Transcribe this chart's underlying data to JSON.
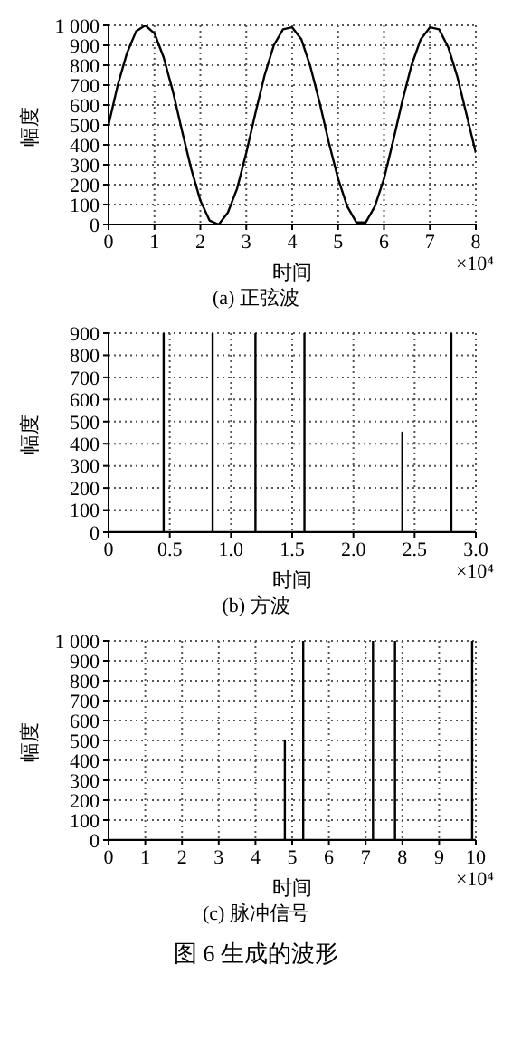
{
  "chart_data": [
    {
      "type": "line",
      "title": "(a) 正弦波",
      "xlabel": "时间",
      "ylabel": "幅度",
      "annotations": [
        "×10⁴"
      ],
      "grid": true,
      "line_style": "solid",
      "marker": "none",
      "xlim": [
        0,
        8
      ],
      "xticks": [
        0,
        1,
        2,
        3,
        4,
        5,
        6,
        7,
        8
      ],
      "ylim": [
        0,
        1000
      ],
      "yticks": [
        0,
        100,
        200,
        300,
        400,
        500,
        600,
        700,
        800,
        900,
        {
          "value": 1000,
          "label": "1 000"
        }
      ],
      "x": [
        0,
        0.2,
        0.4,
        0.6,
        0.8,
        1.0,
        1.2,
        1.4,
        1.6,
        1.8,
        2.0,
        2.2,
        2.4,
        2.6,
        2.8,
        3.0,
        3.2,
        3.4,
        3.6,
        3.8,
        4.0,
        4.2,
        4.4,
        4.6,
        4.8,
        5.0,
        5.2,
        5.4,
        5.6,
        5.8,
        6.0,
        6.2,
        6.4,
        6.6,
        6.8,
        7.0,
        7.2,
        7.4,
        7.6,
        7.8,
        8.0
      ],
      "series": [
        {
          "color": "#000000",
          "values": [
            500,
            700,
            860,
            970,
            1000,
            960,
            840,
            670,
            470,
            280,
            120,
            20,
            0,
            60,
            180,
            360,
            560,
            750,
            900,
            980,
            990,
            930,
            790,
            610,
            410,
            230,
            90,
            10,
            10,
            90,
            230,
            420,
            620,
            800,
            930,
            990,
            980,
            890,
            740,
            550,
            360
          ]
        }
      ]
    },
    {
      "type": "line",
      "title": "(b) 方波",
      "xlabel": "时间",
      "ylabel": "幅度",
      "annotations": [
        "×10⁴"
      ],
      "grid": true,
      "line_style": "solid",
      "marker": "none",
      "xlim": [
        0,
        3.0
      ],
      "xticks": [
        0,
        0.5,
        {
          "value": 1.0,
          "label": "1.0"
        },
        1.5,
        {
          "value": 2.0,
          "label": "2.0"
        },
        2.5,
        {
          "value": 3.0,
          "label": "3.0"
        }
      ],
      "ylim": [
        0,
        900
      ],
      "yticks": [
        0,
        100,
        200,
        300,
        400,
        500,
        600,
        700,
        800,
        900
      ],
      "x": [
        0,
        0.45,
        0.45,
        0.45,
        0.85,
        0.85,
        0.85,
        1.2,
        1.2,
        1.2,
        1.6,
        1.6,
        1.6,
        2.4,
        2.4,
        2.4,
        2.8,
        2.8,
        2.8,
        3.0
      ],
      "series": [
        {
          "color": "#000000",
          "values": [
            0,
            0,
            900,
            0,
            0,
            900,
            0,
            0,
            900,
            0,
            0,
            900,
            0,
            0,
            450,
            0,
            0,
            900,
            0,
            0
          ]
        }
      ]
    },
    {
      "type": "line",
      "title": "(c) 脉冲信号",
      "xlabel": "时间",
      "ylabel": "幅度",
      "annotations": [
        "×10⁴",
        "图 6 生成的波形"
      ],
      "grid": true,
      "line_style": "solid",
      "marker": "none",
      "xlim": [
        0,
        10
      ],
      "xticks": [
        0,
        1,
        2,
        3,
        4,
        5,
        6,
        7,
        8,
        9,
        10
      ],
      "ylim": [
        0,
        1000
      ],
      "yticks": [
        0,
        100,
        200,
        300,
        400,
        500,
        600,
        700,
        800,
        900,
        {
          "value": 1000,
          "label": "1 000"
        }
      ],
      "x": [
        0,
        4.8,
        4.8,
        4.8,
        5.3,
        5.3,
        5.3,
        7.2,
        7.2,
        7.2,
        7.8,
        7.8,
        7.8,
        9.9,
        9.9,
        9.9,
        10
      ],
      "series": [
        {
          "color": "#000000",
          "values": [
            0,
            0,
            500,
            0,
            0,
            1000,
            0,
            0,
            1000,
            0,
            0,
            1000,
            0,
            0,
            1000,
            0,
            0
          ]
        }
      ]
    }
  ]
}
